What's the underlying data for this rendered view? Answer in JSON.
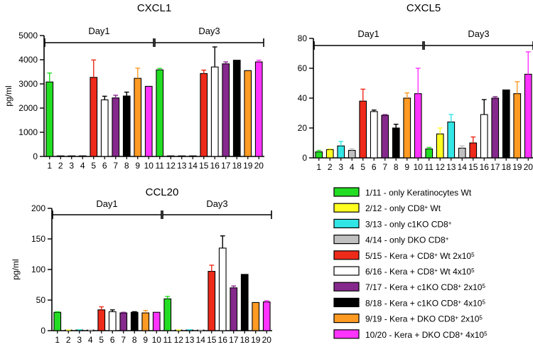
{
  "legend": {
    "entries": [
      {
        "label": "1/11 - only Keratinocytes Wt",
        "color": "#22dd22",
        "parts": [
          {
            "t": "1/11 - only Keratinocytes Wt",
            "s": 0
          }
        ]
      },
      {
        "label": "2/12 - only CD8+ Wt",
        "color": "#ffff22",
        "parts": [
          {
            "t": "2/12 - only CD8",
            "s": 0
          },
          {
            "t": "+",
            "s": 1
          },
          {
            "t": " Wt",
            "s": 0
          }
        ]
      },
      {
        "label": "3/13 - only c1KO CD8+",
        "color": "#33e6e6",
        "parts": [
          {
            "t": "3/13 - only c1KO CD8",
            "s": 0
          },
          {
            "t": "+",
            "s": 1
          }
        ]
      },
      {
        "label": "4/14 - only DKO CD8+",
        "color": "#c0c0c0",
        "parts": [
          {
            "t": "4/14 - only DKO CD8",
            "s": 0
          },
          {
            "t": "+",
            "s": 1
          }
        ]
      },
      {
        "label": "5/15 - Kera + CD8+ Wt 2x105",
        "color": "#ee2a1a",
        "parts": [
          {
            "t": "5/15 - Kera + CD8",
            "s": 0
          },
          {
            "t": "+",
            "s": 1
          },
          {
            "t": " Wt 2x10",
            "s": 0
          },
          {
            "t": "5",
            "s": 1
          }
        ]
      },
      {
        "label": "6/16 - Kera + CD8+ Wt 4x105",
        "color": "#ffffff",
        "parts": [
          {
            "t": "6/16 - Kera + CD8",
            "s": 0
          },
          {
            "t": "+",
            "s": 1
          },
          {
            "t": " Wt 4x10",
            "s": 0
          },
          {
            "t": "5",
            "s": 1
          }
        ]
      },
      {
        "label": "7/17 - Kera + c1KO CD8+ 2x105",
        "color": "#86298c",
        "parts": [
          {
            "t": "7/17 - Kera + c1KO CD8",
            "s": 0
          },
          {
            "t": "+",
            "s": 1
          },
          {
            "t": " 2x10",
            "s": 0
          },
          {
            "t": "5",
            "s": 1
          }
        ]
      },
      {
        "label": "8/18 - Kera + c1KO CD8+ 4x105",
        "color": "#000000",
        "parts": [
          {
            "t": "8/18 - Kera + c1KO CD8",
            "s": 0
          },
          {
            "t": "+",
            "s": 1
          },
          {
            "t": " 4x10",
            "s": 0
          },
          {
            "t": "5",
            "s": 1
          }
        ]
      },
      {
        "label": "9/19 - Kera + DKO CD8+ 2x105",
        "color": "#ff9a22",
        "parts": [
          {
            "t": "9/19 - Kera + DKO CD8",
            "s": 0
          },
          {
            "t": "+",
            "s": 1
          },
          {
            "t": " 2x10",
            "s": 0
          },
          {
            "t": "5",
            "s": 1
          }
        ]
      },
      {
        "label": "10/20 - Kera + DKO CD8+ 4x105",
        "color": "#ff33ff",
        "parts": [
          {
            "t": "10/20 - Kera + DKO CD8",
            "s": 0
          },
          {
            "t": "+",
            "s": 1
          },
          {
            "t": " 4x10",
            "s": 0
          },
          {
            "t": "5",
            "s": 1
          }
        ]
      }
    ]
  },
  "chart_data": [
    {
      "type": "bar",
      "title": "CXCL1",
      "ylabel": "pg/ml",
      "xlabel": "",
      "ylim": [
        0,
        5000
      ],
      "yticks": [
        0,
        1000,
        2000,
        3000,
        4000,
        5000
      ],
      "categories": [
        "1",
        "2",
        "3",
        "4",
        "5",
        "6",
        "7",
        "8",
        "9",
        "10",
        "11",
        "12",
        "13",
        "14",
        "15",
        "16",
        "17",
        "18",
        "19",
        "20"
      ],
      "values": [
        3080,
        0,
        0,
        0,
        3270,
        2340,
        2420,
        2500,
        3230,
        2900,
        3580,
        0,
        0,
        0,
        3430,
        3700,
        3830,
        3980,
        3550,
        3910
      ],
      "errors": [
        370,
        0,
        0,
        0,
        720,
        150,
        110,
        160,
        420,
        0,
        60,
        0,
        0,
        0,
        140,
        830,
        80,
        0,
        0,
        70
      ],
      "periods": [
        {
          "label": "Day1",
          "from": 1,
          "to": 10
        },
        {
          "label": "Day3",
          "from": 11,
          "to": 20
        }
      ],
      "grid": false
    },
    {
      "type": "bar",
      "title": "CXCL5",
      "ylabel": "",
      "xlabel": "",
      "ylim": [
        0,
        80
      ],
      "yticks": [
        0,
        20,
        40,
        60,
        80
      ],
      "categories": [
        "1",
        "2",
        "3",
        "4",
        "5",
        "6",
        "7",
        "8",
        "9",
        "10",
        "11",
        "12",
        "13",
        "14",
        "15",
        "16",
        "17",
        "18",
        "19",
        "20"
      ],
      "values": [
        4,
        5.5,
        8,
        5,
        38,
        31,
        28.5,
        20,
        40,
        43,
        6,
        16,
        24,
        6.5,
        10,
        29,
        40,
        45.5,
        43,
        56
      ],
      "errors": [
        1,
        0.5,
        3,
        1,
        8,
        1,
        0.5,
        2.5,
        3.5,
        17,
        1,
        4,
        5,
        1.5,
        4,
        10,
        1,
        0,
        8,
        15
      ],
      "periods": [
        {
          "label": "Day1",
          "from": 1,
          "to": 10
        },
        {
          "label": "Day3",
          "from": 11,
          "to": 20
        }
      ],
      "grid": false
    },
    {
      "type": "bar",
      "title": "CCL20",
      "ylabel": "pg/ml",
      "xlabel": "",
      "ylim": [
        0,
        200
      ],
      "yticks": [
        0,
        50,
        100,
        150,
        200
      ],
      "categories": [
        "1",
        "2",
        "3",
        "4",
        "5",
        "6",
        "7",
        "8",
        "9",
        "10",
        "11",
        "12",
        "13",
        "14",
        "15",
        "16",
        "17",
        "18",
        "19",
        "20"
      ],
      "values": [
        30,
        0.5,
        1,
        0.5,
        34,
        31,
        29,
        30,
        29,
        30,
        52,
        0.5,
        1,
        0.5,
        97,
        135,
        70,
        92,
        46,
        47
      ],
      "errors": [
        1,
        0.5,
        0.5,
        0.5,
        5,
        3,
        1,
        1,
        4,
        0,
        4,
        0.5,
        0.5,
        0.5,
        10,
        20,
        3,
        0,
        0,
        2
      ],
      "periods": [
        {
          "label": "Day1",
          "from": 1,
          "to": 10
        },
        {
          "label": "Day3",
          "from": 11,
          "to": 20
        }
      ],
      "grid": false
    }
  ]
}
